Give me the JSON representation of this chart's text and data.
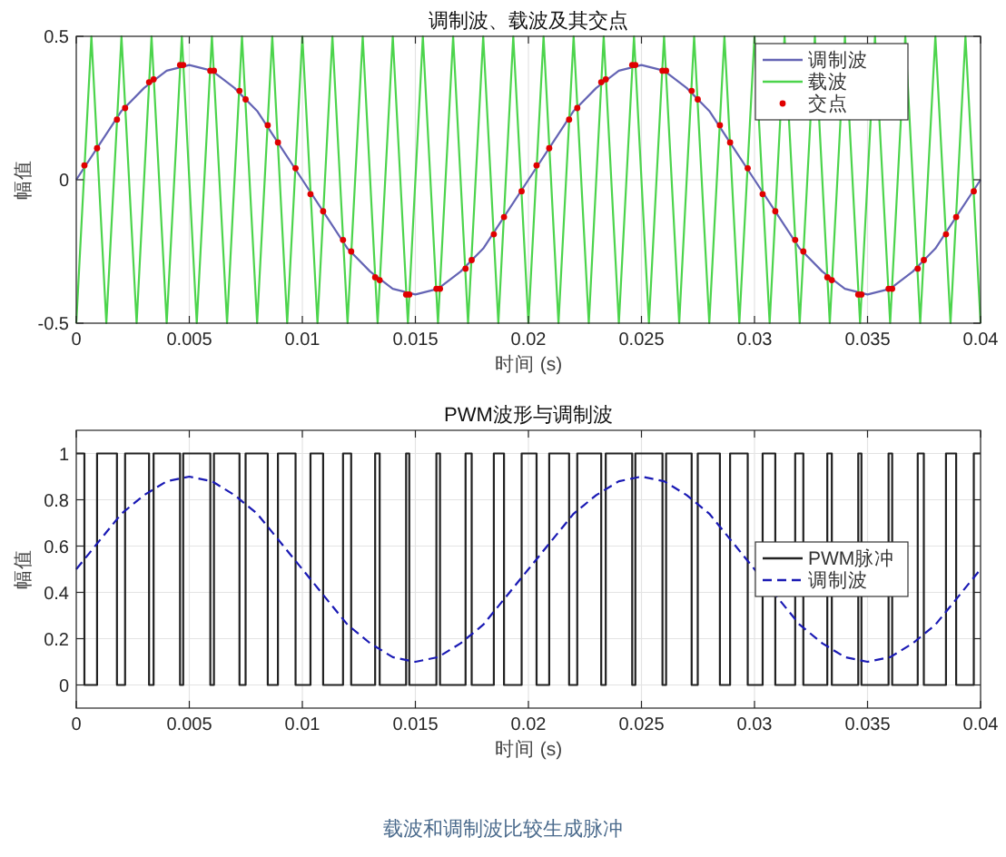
{
  "chart_data": [
    {
      "type": "line",
      "title": "调制波、载波及其交点",
      "xlabel": "时间 (s)",
      "ylabel": "幅值",
      "xlim": [
        0,
        0.04
      ],
      "xticks": [
        0,
        0.005,
        0.01,
        0.015,
        0.02,
        0.025,
        0.03,
        0.035,
        0.04
      ],
      "ylim": [
        -0.5,
        0.5
      ],
      "yticks": [
        -0.5,
        0,
        0.5
      ],
      "grid": true,
      "legend": "top right",
      "series": [
        {
          "name": "调制波",
          "color": "#6464b4",
          "x": [
            0,
            0.001,
            0.002,
            0.003,
            0.004,
            0.005,
            0.006,
            0.007,
            0.008,
            0.009,
            0.01,
            0.011,
            0.012,
            0.013,
            0.014,
            0.015,
            0.016,
            0.017,
            0.018,
            0.019,
            0.02,
            0.021,
            0.022,
            0.023,
            0.024,
            0.025,
            0.026,
            0.027,
            0.028,
            0.029,
            0.03,
            0.031,
            0.032,
            0.033,
            0.034,
            0.035,
            0.036,
            0.037,
            0.038,
            0.039,
            0.04
          ],
          "values": [
            0,
            0.12,
            0.24,
            0.32,
            0.38,
            0.4,
            0.38,
            0.32,
            0.24,
            0.12,
            0,
            -0.12,
            -0.24,
            -0.32,
            -0.38,
            -0.4,
            -0.38,
            -0.32,
            -0.24,
            -0.12,
            0,
            0.12,
            0.24,
            0.32,
            0.38,
            0.4,
            0.38,
            0.32,
            0.24,
            0.12,
            0,
            -0.12,
            -0.24,
            -0.32,
            -0.38,
            -0.4,
            -0.38,
            -0.32,
            -0.24,
            -0.12,
            0
          ]
        },
        {
          "name": "载波",
          "color": "#4cd44c",
          "x": [
            0,
            0.00067,
            0.00133,
            0.002,
            0.00267,
            0.00333,
            0.004,
            0.00467,
            0.00533,
            0.006,
            0.00667,
            0.00733,
            0.008,
            0.00867,
            0.00933,
            0.01,
            0.01067,
            0.01133,
            0.012,
            0.01267,
            0.01333,
            0.014,
            0.01467,
            0.01533,
            0.016,
            0.01667,
            0.01733,
            0.018,
            0.01867,
            0.01933,
            0.02,
            0.02067,
            0.02133,
            0.022,
            0.02267,
            0.02333,
            0.024,
            0.02467,
            0.02533,
            0.026,
            0.02667,
            0.02733,
            0.028,
            0.02867,
            0.02933,
            0.03,
            0.03067,
            0.03133,
            0.032,
            0.03267,
            0.03333,
            0.034,
            0.03467,
            0.03533,
            0.036,
            0.03667,
            0.03733,
            0.038,
            0.03867,
            0.03933,
            0.04
          ],
          "values": [
            -0.5,
            0.5,
            -0.5,
            0.5,
            -0.5,
            0.5,
            -0.5,
            0.5,
            -0.5,
            0.5,
            -0.5,
            0.5,
            -0.5,
            0.5,
            -0.5,
            0.5,
            -0.5,
            0.5,
            -0.5,
            0.5,
            -0.5,
            0.5,
            -0.5,
            0.5,
            -0.5,
            0.5,
            -0.5,
            0.5,
            -0.5,
            0.5,
            -0.5,
            0.5,
            -0.5,
            0.5,
            -0.5,
            0.5,
            -0.5,
            0.5,
            -0.5,
            0.5,
            -0.5,
            0.5,
            -0.5,
            0.5,
            -0.5,
            0.5,
            -0.5,
            0.5,
            -0.5,
            0.5,
            -0.5,
            0.5,
            -0.5,
            0.5,
            -0.5,
            0.5,
            -0.5,
            0.5,
            -0.5,
            0.5,
            -0.5
          ]
        },
        {
          "name": "交点",
          "type": "scatter",
          "marker": "circle",
          "color": "#e00000",
          "x": [
            0.00036,
            0.00092,
            0.0018,
            0.00216,
            0.00322,
            0.00342,
            0.00459,
            0.00473,
            0.00593,
            0.00609,
            0.00722,
            0.00749,
            0.00847,
            0.00892,
            0.0097,
            0.01036,
            0.01092,
            0.0118,
            0.01216,
            0.01322,
            0.01342,
            0.01459,
            0.01473,
            0.01593,
            0.01609,
            0.01722,
            0.01749,
            0.01847,
            0.01892,
            0.0197,
            0.02036,
            0.02092,
            0.0218,
            0.02216,
            0.02322,
            0.02342,
            0.02459,
            0.02473,
            0.02593,
            0.02609,
            0.02722,
            0.02749,
            0.02847,
            0.02892,
            0.0297,
            0.03036,
            0.03092,
            0.0318,
            0.03216,
            0.03322,
            0.03342,
            0.03459,
            0.03473,
            0.03593,
            0.03609,
            0.03722,
            0.03749,
            0.03847,
            0.03892,
            0.0397
          ],
          "values": [
            0.05,
            0.11,
            0.21,
            0.25,
            0.34,
            0.35,
            0.4,
            0.4,
            0.38,
            0.38,
            0.31,
            0.28,
            0.19,
            0.13,
            0.04,
            -0.05,
            -0.11,
            -0.21,
            -0.25,
            -0.34,
            -0.35,
            -0.4,
            -0.4,
            -0.38,
            -0.38,
            -0.31,
            -0.28,
            -0.19,
            -0.13,
            -0.04,
            0.05,
            0.11,
            0.21,
            0.25,
            0.34,
            0.35,
            0.4,
            0.4,
            0.38,
            0.38,
            0.31,
            0.28,
            0.19,
            0.13,
            0.04,
            -0.05,
            -0.11,
            -0.21,
            -0.25,
            -0.34,
            -0.35,
            -0.4,
            -0.4,
            -0.38,
            -0.38,
            -0.31,
            -0.28,
            -0.19,
            -0.13,
            -0.04
          ]
        }
      ]
    },
    {
      "type": "step",
      "title": "PWM波形与调制波",
      "xlabel": "时间 (s)",
      "ylabel": "幅值",
      "xlim": [
        0,
        0.04
      ],
      "xticks": [
        0,
        0.005,
        0.01,
        0.015,
        0.02,
        0.025,
        0.03,
        0.035,
        0.04
      ],
      "ylim": [
        -0.1,
        1.1
      ],
      "yticks": [
        0,
        0.2,
        0.4,
        0.6,
        0.8,
        1
      ],
      "grid": true,
      "legend": "right",
      "annotations": [
        "载波和调制波比较生成脉冲"
      ],
      "series": [
        {
          "name": "PWM脉冲",
          "color": "#222222",
          "x": [
            0,
            0.00036,
            0.00092,
            0.0018,
            0.00216,
            0.00322,
            0.00342,
            0.00459,
            0.00473,
            0.00593,
            0.00609,
            0.00722,
            0.00749,
            0.00847,
            0.00892,
            0.0097,
            0.01036,
            0.01092,
            0.0118,
            0.01216,
            0.01322,
            0.01342,
            0.01459,
            0.01473,
            0.01593,
            0.01609,
            0.01722,
            0.01749,
            0.01847,
            0.01892,
            0.0197,
            0.02036,
            0.02092,
            0.0218,
            0.02216,
            0.02322,
            0.02342,
            0.02459,
            0.02473,
            0.02593,
            0.02609,
            0.02722,
            0.02749,
            0.02847,
            0.02892,
            0.0297,
            0.03036,
            0.03092,
            0.0318,
            0.03216,
            0.03322,
            0.03342,
            0.03459,
            0.03473,
            0.03593,
            0.03609,
            0.03722,
            0.03749,
            0.03847,
            0.03892,
            0.0397,
            0.04
          ],
          "values": [
            1,
            0,
            1,
            0,
            1,
            0,
            1,
            0,
            1,
            0,
            1,
            0,
            1,
            0,
            1,
            0,
            1,
            0,
            1,
            0,
            1,
            0,
            1,
            0,
            1,
            0,
            1,
            0,
            1,
            0,
            1,
            0,
            1,
            0,
            1,
            0,
            1,
            0,
            1,
            0,
            1,
            0,
            1,
            0,
            1,
            0,
            1,
            0,
            1,
            0,
            1,
            0,
            1,
            0,
            1,
            0,
            1,
            0,
            1,
            0,
            1,
            1
          ]
        },
        {
          "name": "调制波",
          "type": "line",
          "line_style": "dashed",
          "color": "#1a1ab4",
          "x": [
            0,
            0.001,
            0.002,
            0.003,
            0.004,
            0.005,
            0.006,
            0.007,
            0.008,
            0.009,
            0.01,
            0.011,
            0.012,
            0.013,
            0.014,
            0.015,
            0.016,
            0.017,
            0.018,
            0.019,
            0.02,
            0.021,
            0.022,
            0.023,
            0.024,
            0.025,
            0.026,
            0.027,
            0.028,
            0.029,
            0.03,
            0.031,
            0.032,
            0.033,
            0.034,
            0.035,
            0.036,
            0.037,
            0.038,
            0.039,
            0.04
          ],
          "values": [
            0.5,
            0.62,
            0.74,
            0.82,
            0.88,
            0.9,
            0.88,
            0.82,
            0.74,
            0.62,
            0.5,
            0.38,
            0.26,
            0.18,
            0.12,
            0.1,
            0.12,
            0.18,
            0.26,
            0.38,
            0.5,
            0.62,
            0.74,
            0.82,
            0.88,
            0.9,
            0.88,
            0.82,
            0.74,
            0.62,
            0.5,
            0.38,
            0.26,
            0.18,
            0.12,
            0.1,
            0.12,
            0.18,
            0.26,
            0.38,
            0.5
          ]
        }
      ]
    }
  ]
}
